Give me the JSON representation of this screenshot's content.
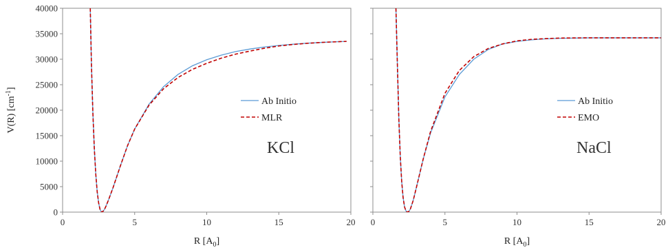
{
  "chart_data": [
    {
      "type": "line",
      "xlabel": "R [A",
      "xlabel_sub": "0",
      "xlabel_end": "]",
      "ylabel": "V(R) [cm",
      "ylabel_sup": "-1",
      "ylabel_end": "]",
      "xlim": [
        0,
        20
      ],
      "ylim": [
        0,
        40000
      ],
      "xticks": [
        0,
        5,
        10,
        15,
        20
      ],
      "yticks": [
        0,
        5000,
        10000,
        15000,
        20000,
        25000,
        30000,
        35000,
        40000
      ],
      "grid": false,
      "legend_position": "center-right",
      "annotation": "KCl",
      "series": [
        {
          "name": "Ab Initio",
          "color": "#5b9bd5",
          "dash": "solid",
          "x": [
            1.92,
            2.0,
            2.1,
            2.2,
            2.3,
            2.4,
            2.5,
            2.6,
            2.7,
            2.8,
            2.9,
            3.0,
            3.2,
            3.5,
            4.0,
            4.5,
            5.0,
            6.0,
            7.0,
            8.0,
            9.0,
            10.0,
            11.0,
            12.0,
            13.0,
            14.0,
            15.0,
            16.0,
            17.0,
            18.0,
            19.0,
            19.7
          ],
          "y": [
            40000,
            29000,
            19500,
            12500,
            7500,
            4000,
            1800,
            500,
            0,
            150,
            500,
            1100,
            2500,
            4800,
            9000,
            13000,
            16300,
            21200,
            24600,
            27000,
            28700,
            29900,
            30800,
            31500,
            32000,
            32400,
            32700,
            32950,
            33150,
            33300,
            33430,
            33500
          ]
        },
        {
          "name": "MLR",
          "color": "#c00000",
          "dash": "dashed",
          "x": [
            1.92,
            2.0,
            2.1,
            2.2,
            2.3,
            2.4,
            2.5,
            2.6,
            2.7,
            2.8,
            2.9,
            3.0,
            3.2,
            3.5,
            4.0,
            4.5,
            5.0,
            6.0,
            7.0,
            8.0,
            9.0,
            10.0,
            11.0,
            12.0,
            13.0,
            14.0,
            15.0,
            16.0,
            17.0,
            18.0,
            19.0,
            19.7
          ],
          "y": [
            40000,
            29000,
            19500,
            12500,
            7500,
            4000,
            1800,
            500,
            0,
            150,
            500,
            1100,
            2500,
            4800,
            9000,
            13000,
            16300,
            21000,
            24200,
            26400,
            28000,
            29200,
            30200,
            31000,
            31600,
            32150,
            32600,
            32900,
            33130,
            33300,
            33430,
            33500
          ]
        }
      ]
    },
    {
      "type": "line",
      "xlabel": "R [A",
      "xlabel_sub": "0",
      "xlabel_end": "]",
      "xlim": [
        0,
        20
      ],
      "ylim": [
        0,
        40000
      ],
      "xticks": [
        0,
        5,
        10,
        15,
        20
      ],
      "grid": false,
      "legend_position": "center-right",
      "annotation": "NaCl",
      "series": [
        {
          "name": "Ab Initio",
          "color": "#5b9bd5",
          "dash": "solid",
          "x": [
            1.6,
            1.7,
            1.8,
            1.9,
            2.0,
            2.1,
            2.2,
            2.3,
            2.4,
            2.5,
            2.6,
            2.8,
            3.0,
            3.5,
            4.0,
            5.0,
            6.0,
            7.0,
            8.0,
            9.0,
            10.0,
            11.0,
            12.0,
            13.0,
            14.0,
            15.0,
            16.0,
            17.0,
            18.0,
            19.0,
            20.0
          ],
          "y": [
            40000,
            29000,
            18500,
            11000,
            6000,
            2800,
            1000,
            200,
            0,
            150,
            600,
            2300,
            4600,
            10500,
            15500,
            22600,
            27000,
            30000,
            31900,
            33000,
            33500,
            33800,
            34000,
            34100,
            34150,
            34200,
            34200,
            34200,
            34200,
            34200,
            34200
          ]
        },
        {
          "name": "EMO",
          "color": "#c00000",
          "dash": "dashed",
          "x": [
            1.6,
            1.7,
            1.8,
            1.9,
            2.0,
            2.1,
            2.2,
            2.3,
            2.4,
            2.5,
            2.6,
            2.8,
            3.0,
            3.5,
            4.0,
            5.0,
            6.0,
            7.0,
            8.0,
            9.0,
            10.0,
            11.0,
            12.0,
            13.0,
            14.0,
            15.0,
            16.0,
            17.0,
            18.0,
            19.0,
            20.0
          ],
          "y": [
            40000,
            29000,
            18500,
            11000,
            6000,
            2800,
            1000,
            200,
            0,
            150,
            600,
            2300,
            4600,
            10500,
            15800,
            23300,
            27800,
            30500,
            32100,
            33000,
            33600,
            33900,
            34050,
            34150,
            34180,
            34200,
            34200,
            34200,
            34200,
            34200,
            34200
          ]
        }
      ]
    }
  ]
}
